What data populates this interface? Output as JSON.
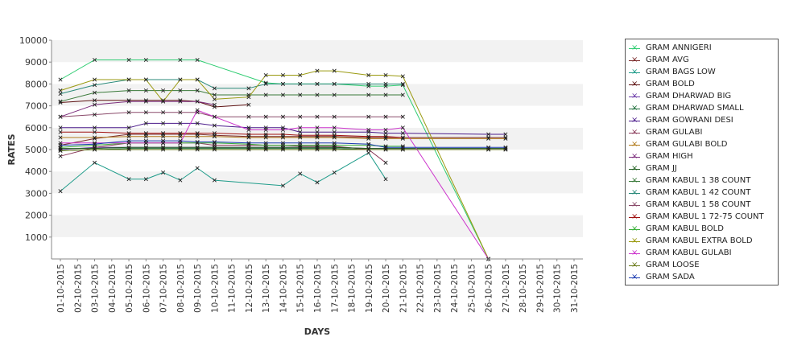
{
  "chart_data": {
    "type": "line",
    "title": "",
    "xlabel": "DAYS",
    "ylabel": "RATES",
    "ylim": [
      0,
      10000
    ],
    "yticks": [
      "1000",
      "2000",
      "3000",
      "4000",
      "5000",
      "6000",
      "7000",
      "8000",
      "9000",
      "10000"
    ],
    "grid": "horizontal bands",
    "legend_position": "right",
    "x": [
      "01-10-2015",
      "02-10-2015",
      "03-10-2015",
      "04-10-2015",
      "05-10-2015",
      "06-10-2015",
      "07-10-2015",
      "08-10-2015",
      "09-10-2015",
      "10-10-2015",
      "11-10-2015",
      "12-10-2015",
      "13-10-2015",
      "14-10-2015",
      "15-10-2015",
      "16-10-2015",
      "17-10-2015",
      "18-10-2015",
      "19-10-2015",
      "20-10-2015",
      "21-10-2015",
      "22-10-2015",
      "23-10-2015",
      "24-10-2015",
      "25-10-2015",
      "26-10-2015",
      "27-10-2015",
      "28-10-2015",
      "29-10-2015",
      "30-10-2015",
      "31-10-2015"
    ],
    "series": [
      {
        "name": "GRAM ANNIGERI",
        "color": "#2ecc71",
        "values": [
          8200,
          null,
          9100,
          null,
          9100,
          9100,
          null,
          9100,
          9100,
          null,
          null,
          null,
          8050,
          8000,
          8000,
          8000,
          8000,
          null,
          7900,
          7900,
          7950,
          null,
          null,
          null,
          null,
          0,
          null,
          null,
          null,
          null,
          null
        ]
      },
      {
        "name": "GRAM AVG",
        "color": "#7a2a2a",
        "values": [
          5200,
          null,
          5500,
          null,
          5700,
          5700,
          5700,
          5700,
          5700,
          5650,
          null,
          5600,
          5600,
          5600,
          5600,
          5600,
          5600,
          null,
          5550,
          5550,
          5550,
          null,
          null,
          null,
          null,
          5550,
          5550,
          null,
          null,
          null,
          null
        ]
      },
      {
        "name": "GRAM BAGS LOW",
        "color": "#1f9c8a",
        "values": [
          3100,
          null,
          4400,
          null,
          3650,
          3650,
          3950,
          3600,
          4150,
          3600,
          null,
          null,
          null,
          3350,
          3900,
          3500,
          3950,
          null,
          4850,
          3650,
          null,
          null,
          null,
          null,
          null,
          null,
          null,
          null,
          null,
          null,
          null
        ]
      },
      {
        "name": "GRAM BOLD",
        "color": "#5c1010",
        "values": [
          7150,
          null,
          7250,
          null,
          7250,
          7250,
          7250,
          7250,
          7200,
          6950,
          null,
          7050,
          null,
          null,
          null,
          null,
          null,
          null,
          null,
          null,
          null,
          null,
          null,
          null,
          null,
          null,
          null,
          null,
          null,
          null,
          null
        ]
      },
      {
        "name": "GRAM DHARWAD BIG",
        "color": "#6a3aa8",
        "values": [
          5000,
          null,
          5100,
          null,
          5100,
          5100,
          5100,
          5100,
          5100,
          5100,
          null,
          5100,
          5100,
          5100,
          5100,
          5100,
          5100,
          null,
          5050,
          5050,
          5050,
          null,
          null,
          null,
          null,
          5050,
          5050,
          null,
          null,
          null,
          null
        ]
      },
      {
        "name": "GRAM DHARWAD SMALL",
        "color": "#1e6e3a",
        "values": [
          4950,
          null,
          5000,
          null,
          5050,
          5050,
          5050,
          5050,
          5050,
          5050,
          null,
          5050,
          5050,
          5050,
          5050,
          5050,
          5050,
          null,
          5000,
          5000,
          5000,
          null,
          null,
          null,
          null,
          5000,
          5000,
          null,
          null,
          null,
          null
        ]
      },
      {
        "name": "GRAM GOWRANI DESI",
        "color": "#4a1a8a",
        "values": [
          6000,
          null,
          6000,
          null,
          6000,
          6200,
          6200,
          6200,
          6200,
          6100,
          null,
          6000,
          6000,
          6000,
          5800,
          5800,
          5800,
          null,
          5800,
          5750,
          5750,
          null,
          null,
          null,
          null,
          5700,
          5700,
          null,
          null,
          null,
          null
        ]
      },
      {
        "name": "GRAM GULABI",
        "color": "#8a3a5a",
        "values": [
          4700,
          null,
          5100,
          null,
          5300,
          5300,
          5300,
          5300,
          5300,
          5200,
          null,
          5200,
          5200,
          5200,
          5150,
          5150,
          5150,
          null,
          5000,
          4400,
          null,
          null,
          null,
          null,
          null,
          null,
          null,
          null,
          null,
          null,
          null
        ]
      },
      {
        "name": "GRAM GULABI BOLD",
        "color": "#b07a1a",
        "values": [
          5550,
          null,
          5550,
          null,
          5600,
          5600,
          5600,
          5600,
          5600,
          5600,
          null,
          5550,
          5550,
          5550,
          5550,
          5550,
          5550,
          null,
          5500,
          5500,
          5500,
          null,
          null,
          null,
          null,
          5500,
          5500,
          null,
          null,
          null,
          null
        ]
      },
      {
        "name": "GRAM HIGH",
        "color": "#7a2a7a",
        "values": [
          6500,
          null,
          7050,
          null,
          7200,
          7200,
          7200,
          7200,
          7200,
          7050,
          null,
          null,
          null,
          null,
          null,
          null,
          null,
          null,
          null,
          null,
          null,
          null,
          null,
          null,
          null,
          null,
          null,
          null,
          null,
          null,
          null
        ]
      },
      {
        "name": "GRAM JJ",
        "color": "#1e5e1e",
        "values": [
          5050,
          null,
          5050,
          null,
          5100,
          5100,
          5100,
          5100,
          5100,
          5100,
          null,
          5100,
          5100,
          5100,
          5100,
          5100,
          5100,
          null,
          5050,
          5050,
          5050,
          null,
          null,
          null,
          null,
          5050,
          5050,
          null,
          null,
          null,
          null
        ]
      },
      {
        "name": "GRAM KABUL 1 38 COUNT",
        "color": "#3a7a3a",
        "values": [
          7200,
          null,
          7600,
          null,
          7700,
          7700,
          7700,
          7700,
          7700,
          7500,
          null,
          7500,
          7500,
          7500,
          7500,
          7500,
          7500,
          null,
          7500,
          7500,
          7500,
          null,
          null,
          null,
          null,
          null,
          null,
          null,
          null,
          null,
          null
        ]
      },
      {
        "name": "GRAM KABUL 1 42 COUNT",
        "color": "#2a8a7a",
        "values": [
          7550,
          null,
          7950,
          null,
          8200,
          8200,
          null,
          8200,
          8200,
          7800,
          null,
          7800,
          8000,
          8000,
          8000,
          8000,
          8000,
          null,
          8000,
          8000,
          8000,
          null,
          null,
          null,
          null,
          null,
          null,
          null,
          null,
          null,
          null
        ]
      },
      {
        "name": "GRAM KABUL 1 58 COUNT",
        "color": "#8a4a6a",
        "values": [
          6500,
          null,
          6600,
          null,
          6700,
          6700,
          6700,
          6700,
          6700,
          6500,
          null,
          6500,
          6500,
          6500,
          6500,
          6500,
          6500,
          null,
          6500,
          6500,
          6500,
          null,
          null,
          null,
          null,
          null,
          null,
          null,
          null,
          null,
          null
        ]
      },
      {
        "name": "GRAM KABUL 1 72-75 COUNT",
        "color": "#a01010",
        "values": [
          5800,
          null,
          5800,
          null,
          5750,
          5750,
          5750,
          5750,
          5750,
          5750,
          null,
          5700,
          5700,
          5700,
          5650,
          5650,
          5650,
          null,
          5600,
          5600,
          5550,
          null,
          null,
          null,
          null,
          null,
          null,
          null,
          null,
          null,
          null
        ]
      },
      {
        "name": "GRAM KABUL BOLD",
        "color": "#3ab03a",
        "values": [
          5100,
          null,
          5200,
          null,
          5300,
          5300,
          5300,
          5300,
          5300,
          5300,
          null,
          5250,
          5200,
          5200,
          5200,
          5200,
          5200,
          null,
          5200,
          5150,
          5150,
          null,
          null,
          null,
          null,
          null,
          null,
          null,
          null,
          null,
          null
        ]
      },
      {
        "name": "GRAM KABUL EXTRA BOLD",
        "color": "#9a9a10",
        "values": [
          7700,
          null,
          8200,
          null,
          8200,
          8200,
          7200,
          8200,
          8200,
          7300,
          null,
          7400,
          8400,
          8400,
          8400,
          8600,
          8600,
          null,
          8400,
          8400,
          8350,
          null,
          null,
          null,
          null,
          0,
          null,
          null,
          null,
          null,
          null
        ]
      },
      {
        "name": "GRAM KABUL GULABI",
        "color": "#cc33cc",
        "values": [
          5300,
          null,
          5300,
          null,
          5300,
          5300,
          5300,
          5300,
          6800,
          6500,
          null,
          5900,
          5900,
          5900,
          6000,
          6000,
          6000,
          null,
          5900,
          5900,
          6000,
          null,
          null,
          null,
          null,
          0,
          null,
          null,
          null,
          null,
          null
        ]
      },
      {
        "name": "GRAM LOOSE",
        "color": "#6a7a1a",
        "values": [
          4950,
          null,
          5000,
          null,
          5000,
          5000,
          5000,
          5000,
          5000,
          5000,
          null,
          5000,
          5000,
          5000,
          5000,
          5000,
          5000,
          null,
          5000,
          5000,
          5000,
          null,
          null,
          null,
          null,
          5000,
          5000,
          null,
          null,
          null,
          null
        ]
      },
      {
        "name": "GRAM SADA",
        "color": "#1a3ab0",
        "values": [
          5200,
          null,
          5250,
          null,
          5400,
          5400,
          5400,
          5400,
          5350,
          5350,
          null,
          5300,
          5300,
          5300,
          5300,
          5300,
          5300,
          null,
          5250,
          5100,
          5100,
          null,
          null,
          null,
          null,
          5100,
          5100,
          null,
          null,
          null,
          null
        ]
      }
    ]
  }
}
